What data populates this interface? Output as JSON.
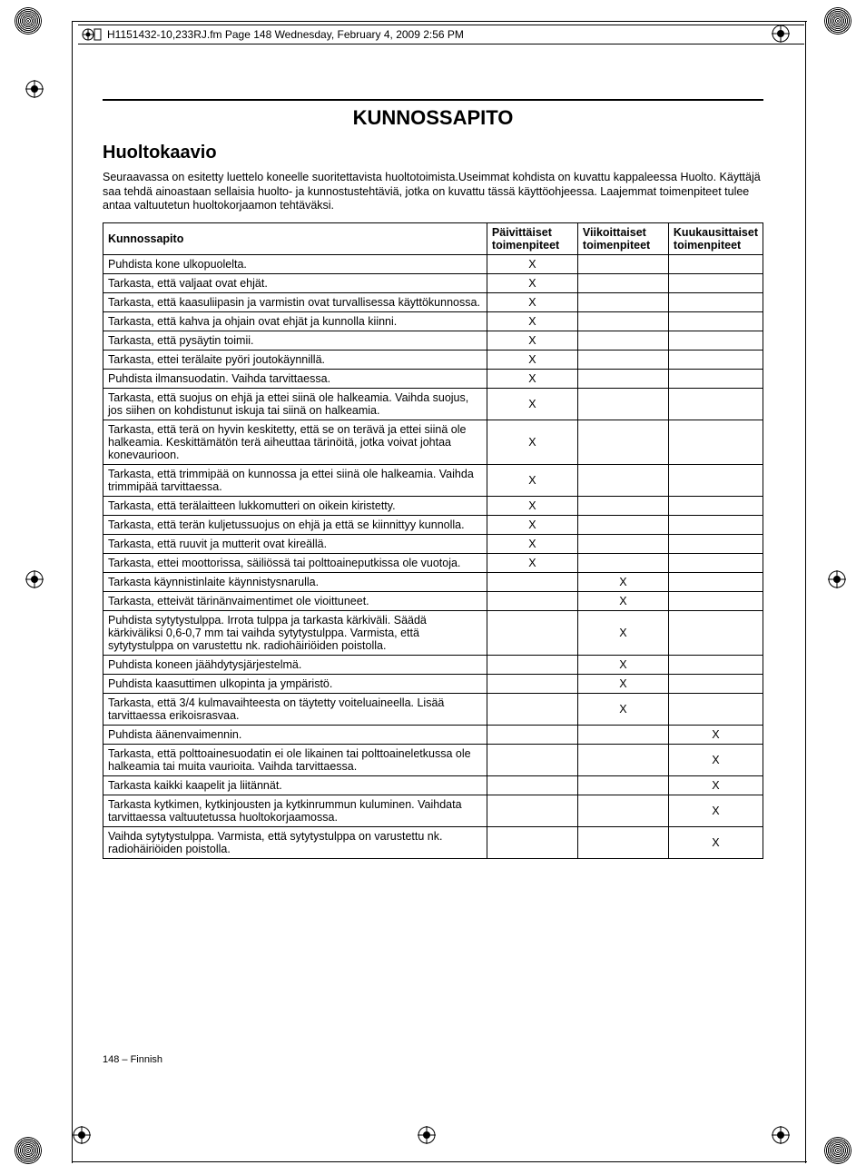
{
  "header": {
    "text": "H1151432-10,233RJ.fm  Page 148  Wednesday, February 4, 2009  2:56 PM"
  },
  "page": {
    "main_title": "KUNNOSSAPITO",
    "subtitle": "Huoltokaavio",
    "intro": "Seuraavassa on esitetty luettelo koneelle suoritettavista huoltotoimista.Useimmat kohdista on kuvattu kappaleessa Huolto. Käyttäjä saa tehdä ainoastaan sellaisia huolto- ja kunnostustehtäviä, jotka on kuvattu tässä käyttöohjeessa. Laajemmat toimenpiteet tulee antaa valtuutetun huoltokorjaamon tehtäväksi.",
    "footer": "148 – Finnish"
  },
  "table": {
    "headers": [
      "Kunnossapito",
      "Päivittäiset toimenpiteet",
      "Viikoittaiset toimenpiteet",
      "Kuukausittaiset toimenpiteet"
    ],
    "rows": [
      {
        "label": "Puhdista kone ulkopuolelta.",
        "d": "X",
        "w": "",
        "m": ""
      },
      {
        "label": "Tarkasta, että valjaat ovat ehjät.",
        "d": "X",
        "w": "",
        "m": ""
      },
      {
        "label": "Tarkasta, että kaasuliipasin ja varmistin ovat turvallisessa käyttökunnossa.",
        "d": "X",
        "w": "",
        "m": ""
      },
      {
        "label": "Tarkasta, että kahva ja ohjain ovat ehjät ja kunnolla kiinni.",
        "d": "X",
        "w": "",
        "m": ""
      },
      {
        "label": "Tarkasta, että pysäytin toimii.",
        "d": "X",
        "w": "",
        "m": ""
      },
      {
        "label": "Tarkasta, ettei terälaite pyöri joutokäynnillä.",
        "d": "X",
        "w": "",
        "m": ""
      },
      {
        "label": "Puhdista ilmansuodatin. Vaihda tarvittaessa.",
        "d": "X",
        "w": "",
        "m": ""
      },
      {
        "label": "Tarkasta, että suojus on ehjä ja ettei siinä ole halkeamia. Vaihda suojus, jos siihen on kohdistunut iskuja tai siinä on halkeamia.",
        "d": "X",
        "w": "",
        "m": ""
      },
      {
        "label": "Tarkasta, että terä on hyvin keskitetty, että se on terävä ja ettei siinä ole halkeamia. Keskittämätön terä aiheuttaa tärinöitä, jotka voivat johtaa konevaurioon.",
        "d": "X",
        "w": "",
        "m": ""
      },
      {
        "label": "Tarkasta, että trimmipää on kunnossa ja ettei siinä ole halkeamia. Vaihda trimmipää tarvittaessa.",
        "d": "X",
        "w": "",
        "m": ""
      },
      {
        "label": "Tarkasta, että terälaitteen lukkomutteri on oikein kiristetty.",
        "d": "X",
        "w": "",
        "m": ""
      },
      {
        "label": "Tarkasta, että terän kuljetussuojus on ehjä ja että se kiinnittyy kunnolla.",
        "d": "X",
        "w": "",
        "m": ""
      },
      {
        "label": "Tarkasta, että ruuvit ja mutterit ovat kireällä.",
        "d": "X",
        "w": "",
        "m": ""
      },
      {
        "label": "Tarkasta, ettei moottorissa, säiliössä tai polttoaineputkissa ole vuotoja.",
        "d": "X",
        "w": "",
        "m": ""
      },
      {
        "label": "Tarkasta käynnistinlaite käynnistysnarulla.",
        "d": "",
        "w": "X",
        "m": ""
      },
      {
        "label": "Tarkasta, etteivät tärinänvaimentimet ole vioittuneet.",
        "d": "",
        "w": "X",
        "m": ""
      },
      {
        "label": "Puhdista sytytystulppa. Irrota tulppa ja tarkasta kärkiväli. Säädä kärkiväliksi 0,6-0,7 mm tai vaihda sytytystulppa. Varmista, että sytytystulppa on varustettu nk. radiohäiriöiden poistolla.",
        "d": "",
        "w": "X",
        "m": ""
      },
      {
        "label": "Puhdista koneen jäähdytysjärjestelmä.",
        "d": "",
        "w": "X",
        "m": ""
      },
      {
        "label": "Puhdista kaasuttimen ulkopinta ja ympäristö.",
        "d": "",
        "w": "X",
        "m": ""
      },
      {
        "label": "Tarkasta, että 3/4 kulmavaihteesta on täytetty voiteluaineella. Lisää tarvittaessa erikoisrasvaa.",
        "d": "",
        "w": "X",
        "m": ""
      },
      {
        "label": "Puhdista äänenvaimennin.",
        "d": "",
        "w": "",
        "m": "X"
      },
      {
        "label": "Tarkasta, että polttoainesuodatin ei ole likainen tai polttoaineletkussa ole halkeamia tai muita vaurioita. Vaihda tarvittaessa.",
        "d": "",
        "w": "",
        "m": "X"
      },
      {
        "label": "Tarkasta kaikki kaapelit ja liitännät.",
        "d": "",
        "w": "",
        "m": "X"
      },
      {
        "label": "Tarkasta kytkimen, kytkinjousten ja kytkinrummun kuluminen. Vaihdata tarvittaessa valtuutetussa huoltokorjaamossa.",
        "d": "",
        "w": "",
        "m": "X"
      },
      {
        "label": "Vaihda sytytystulppa. Varmista, että sytytystulppa on varustettu nk. radiohäiriöiden poistolla.",
        "d": "",
        "w": "",
        "m": "X"
      }
    ]
  }
}
